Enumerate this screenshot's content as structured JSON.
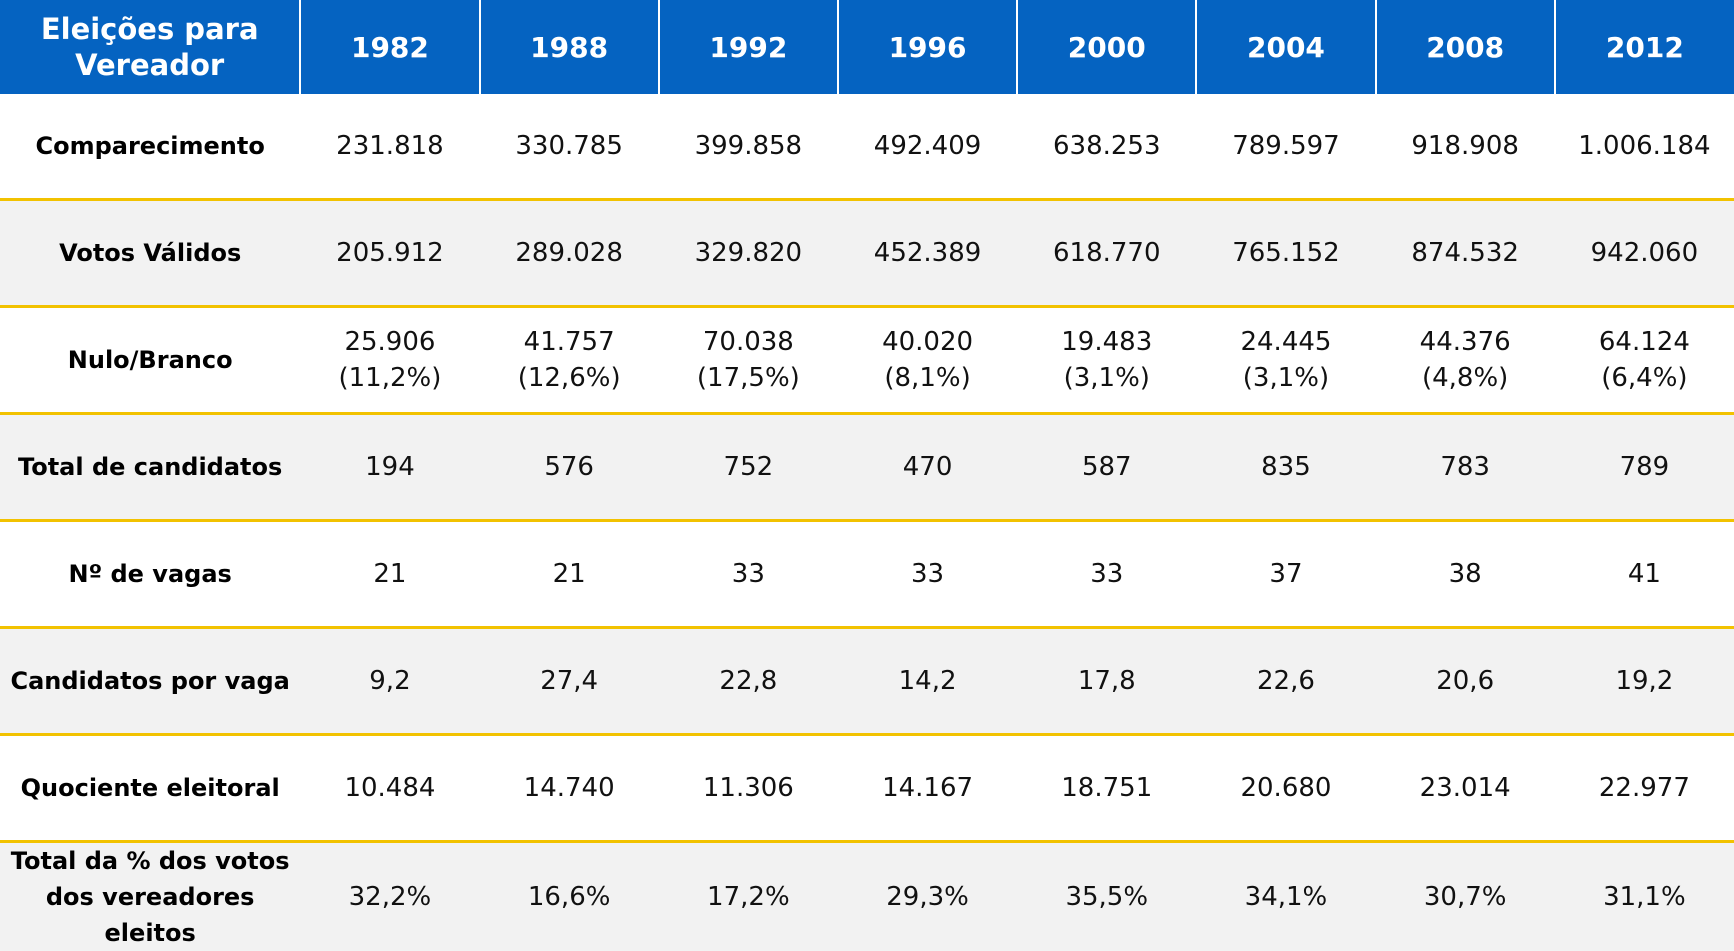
{
  "table": {
    "header_label_line1": "Eleições para",
    "header_label_line2": "Vereador",
    "years": [
      "1982",
      "1988",
      "1992",
      "1996",
      "2000",
      "2004",
      "2008",
      "2012"
    ],
    "rows": [
      {
        "label_line1": "Comparecimento",
        "label_line2": "",
        "values": [
          "231.818",
          "330.785",
          "399.858",
          "492.409",
          "638.253",
          "789.597",
          "918.908",
          "1.006.184"
        ],
        "sub_values": [
          "",
          "",
          "",
          "",
          "",
          "",
          "",
          ""
        ]
      },
      {
        "label_line1": "Votos Válidos",
        "label_line2": "",
        "values": [
          "205.912",
          "289.028",
          "329.820",
          "452.389",
          "618.770",
          "765.152",
          "874.532",
          "942.060"
        ],
        "sub_values": [
          "",
          "",
          "",
          "",
          "",
          "",
          "",
          ""
        ]
      },
      {
        "label_line1": "Nulo/Branco",
        "label_line2": "",
        "values": [
          "25.906",
          "41.757",
          "70.038",
          "40.020",
          "19.483",
          "24.445",
          "44.376",
          "64.124"
        ],
        "sub_values": [
          "(11,2%)",
          "(12,6%)",
          "(17,5%)",
          "(8,1%)",
          "(3,1%)",
          "(3,1%)",
          "(4,8%)",
          "(6,4%)"
        ]
      },
      {
        "label_line1": "Total de candidatos",
        "label_line2": "",
        "values": [
          "194",
          "576",
          "752",
          "470",
          "587",
          "835",
          "783",
          "789"
        ],
        "sub_values": [
          "",
          "",
          "",
          "",
          "",
          "",
          "",
          ""
        ]
      },
      {
        "label_line1": "Nº de vagas",
        "label_line2": "",
        "values": [
          "21",
          "21",
          "33",
          "33",
          "33",
          "37",
          "38",
          "41"
        ],
        "sub_values": [
          "",
          "",
          "",
          "",
          "",
          "",
          "",
          ""
        ]
      },
      {
        "label_line1": "Candidatos por vaga",
        "label_line2": "",
        "values": [
          "9,2",
          "27,4",
          "22,8",
          "14,2",
          "17,8",
          "22,6",
          "20,6",
          "19,2"
        ],
        "sub_values": [
          "",
          "",
          "",
          "",
          "",
          "",
          "",
          ""
        ]
      },
      {
        "label_line1": "Quociente eleitoral",
        "label_line2": "",
        "values": [
          "10.484",
          "14.740",
          "11.306",
          "14.167",
          "18.751",
          "20.680",
          "23.014",
          "22.977"
        ],
        "sub_values": [
          "",
          "",
          "",
          "",
          "",
          "",
          "",
          ""
        ]
      },
      {
        "label_line1": "Total da % dos votos",
        "label_line2": "dos vereadores eleitos",
        "values": [
          "32,2%",
          "16,6%",
          "17,2%",
          "29,3%",
          "35,5%",
          "34,1%",
          "30,7%",
          "31,1%"
        ],
        "sub_values": [
          "",
          "",
          "",
          "",
          "",
          "",
          "",
          ""
        ]
      }
    ]
  },
  "colors": {
    "header_bg": "#0563C1",
    "header_text": "#FFFFFF",
    "row_divider": "#F2C200",
    "alt_row_bg": "#F2F2F2"
  }
}
